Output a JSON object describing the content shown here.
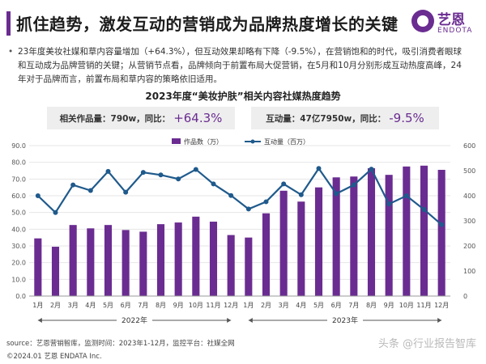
{
  "header": {
    "title": "抓住趋势，激发互动的营销成为品牌热度增长的关键",
    "logo_cn": "艺恩",
    "logo_en": "ENDOTA",
    "brand_color": "#6a2c91"
  },
  "summary": {
    "bullet": "•",
    "text": "23年度美妆社媒和草内容量增加（+64.3%），但互动效果却略有下降（-9.5%），在营销饱和的时代，吸引消费者眼球和互动成为品牌营销的关键；从营销节点看，品牌倾向于前置布局大促营销，在5月和10月分别形成互动热度高峰，24年对于品牌而言，前置布局和草内容的策略依旧适用。"
  },
  "stats": {
    "left_label": "相关作品量：790w，同比：",
    "left_change": "+64.3%",
    "right_label": "互动量：47亿7950w，同比：",
    "right_change": "-9.5%"
  },
  "footer": {
    "source": "source：艺恩营销智库，监测时间：2023年1-12月，监控平台：社媒全网",
    "copyright": "©2024.01  艺恩 ENDATA Inc.",
    "watermark": "头条 @行业报告智库"
  },
  "chart_data": {
    "type": "bar",
    "title": "2023年度“美妆护肤”相关内容社媒热度趋势",
    "categories": [
      "1月",
      "2月",
      "3月",
      "4月",
      "5月",
      "6月",
      "7月",
      "8月",
      "9月",
      "10月",
      "11月",
      "12月",
      "1月",
      "2月",
      "3月",
      "4月",
      "5月",
      "6月",
      "7月",
      "8月",
      "9月",
      "10月",
      "11月",
      "12月"
    ],
    "groups": [
      {
        "label": "2022年",
        "start": 0,
        "end": 11
      },
      {
        "label": "2023年",
        "start": 12,
        "end": 23
      }
    ],
    "left_axis": {
      "min": 0,
      "max": 90,
      "ticks": [
        "0.0",
        "10.0",
        "20.0",
        "30.0",
        "40.0",
        "50.0",
        "60.0",
        "70.0",
        "80.0",
        "90.0"
      ]
    },
    "right_axis": {
      "min": 0,
      "max": 600,
      "ticks": [
        "0",
        "100",
        "200",
        "300",
        "400",
        "500",
        "600"
      ]
    },
    "legend_position": "top-right",
    "series": [
      {
        "name": "作品数（万）",
        "type": "bar",
        "axis": "left",
        "color": "#6a2c91",
        "values": [
          34.5,
          29.5,
          42.5,
          40.5,
          42.5,
          39.5,
          38.5,
          43,
          44,
          47.5,
          44.5,
          36.5,
          35,
          49.5,
          63,
          56.5,
          65,
          71,
          71.5,
          76.5,
          72.5,
          77.5,
          78,
          75.5
        ]
      },
      {
        "name": "互动量（百万）",
        "type": "line",
        "axis": "right",
        "color": "#1f5a8c",
        "values": [
          400,
          333,
          443,
          421,
          497,
          414,
          493,
          483,
          467,
          505,
          447,
          401,
          347,
          376,
          447,
          404,
          509,
          408,
          443,
          506,
          367,
          400,
          345,
          285
        ]
      }
    ]
  }
}
